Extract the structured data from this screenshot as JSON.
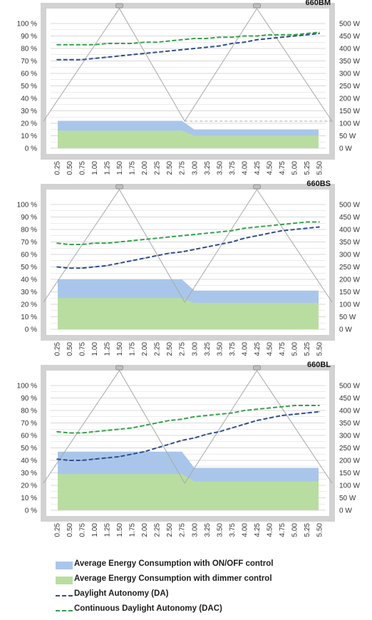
{
  "legend": {
    "onoff": "Average Energy Consumption with ON/OFF control",
    "dimmer": "Average Energy Consumption with dimmer control",
    "da": "Daylight Autonomy (DA)",
    "dac": "Continuous Daylight Autonomy (DAC)"
  },
  "colors": {
    "onoff": "#a9c6ea",
    "dimmer": "#b9dda0",
    "da": "#2f4d8e",
    "dac": "#35a24a",
    "frame": "#d2d2d2",
    "grid": "#d9d9d9",
    "triangle": "#a8a8a8"
  },
  "chart_data": [
    {
      "type": "area",
      "title": "660BM",
      "categories": [
        "0.25",
        "0.50",
        "0.75",
        "1.00",
        "1.25",
        "1.50",
        "1.75",
        "2.00",
        "2.25",
        "2.50",
        "2.75",
        "3.00",
        "3.25",
        "3.50",
        "3.75",
        "4.00",
        "4.25",
        "4.50",
        "4.75",
        "5.00",
        "5.25",
        "5.50"
      ],
      "y_left_ticks": [
        "0 %",
        "10 %",
        "20 %",
        "30 %",
        "40 %",
        "50 %",
        "60 %",
        "70 %",
        "80 %",
        "90 %",
        "100 %"
      ],
      "y_right_ticks": [
        "0 W",
        "50 W",
        "100 W",
        "150 W",
        "200 W",
        "250 W",
        "300 W",
        "350 W",
        "400 W",
        "450 W",
        "500 W"
      ],
      "ylim_left": [
        0,
        100
      ],
      "ylim_right": [
        0,
        500
      ],
      "grid": true,
      "series": [
        {
          "name": "Average Energy Consumption with ON/OFF control",
          "kind": "area",
          "axis": "right",
          "values": [
            110,
            110,
            110,
            110,
            110,
            110,
            110,
            110,
            110,
            110,
            110,
            75,
            75,
            75,
            75,
            75,
            75,
            75,
            75,
            75,
            75,
            75
          ]
        },
        {
          "name": "Average Energy Consumption with dimmer control",
          "kind": "area",
          "axis": "right",
          "values": [
            70,
            70,
            70,
            70,
            70,
            70,
            70,
            70,
            70,
            70,
            70,
            50,
            50,
            50,
            50,
            50,
            50,
            50,
            50,
            50,
            50,
            50
          ]
        },
        {
          "name": "Daylight Autonomy (DA)",
          "kind": "line",
          "axis": "left",
          "values": [
            71,
            71,
            71,
            72,
            73,
            74,
            75,
            76,
            77,
            78,
            79,
            80,
            81,
            82,
            84,
            85,
            87,
            88,
            89,
            90,
            91,
            92
          ]
        },
        {
          "name": "Continuous Daylight Autonomy (DAC)",
          "kind": "line",
          "axis": "left",
          "values": [
            83,
            83,
            83,
            83,
            84,
            84,
            84,
            85,
            85,
            86,
            87,
            88,
            88,
            89,
            89,
            90,
            90,
            91,
            91,
            91,
            92,
            93
          ]
        }
      ]
    },
    {
      "type": "area",
      "title": "660BS",
      "categories": [
        "0.25",
        "0.50",
        "0.75",
        "1.00",
        "1.25",
        "1.50",
        "1.75",
        "2.00",
        "2.25",
        "2.50",
        "2.75",
        "3.00",
        "3.25",
        "3.50",
        "3.75",
        "4.00",
        "4.25",
        "4.50",
        "4.75",
        "5.00",
        "5.25",
        "5.50"
      ],
      "y_left_ticks": [
        "0 %",
        "10 %",
        "20 %",
        "30 %",
        "40 %",
        "50 %",
        "60 %",
        "70 %",
        "80 %",
        "90 %",
        "100 %"
      ],
      "y_right_ticks": [
        "0 W",
        "50 W",
        "100 W",
        "150 W",
        "200 W",
        "250 W",
        "300 W",
        "350 W",
        "400 W",
        "450 W",
        "500 W"
      ],
      "ylim_left": [
        0,
        100
      ],
      "ylim_right": [
        0,
        500
      ],
      "grid": true,
      "series": [
        {
          "name": "Average Energy Consumption with ON/OFF control",
          "kind": "area",
          "axis": "right",
          "values": [
            200,
            200,
            200,
            200,
            200,
            200,
            200,
            200,
            200,
            200,
            200,
            155,
            155,
            155,
            155,
            155,
            155,
            155,
            155,
            155,
            155,
            155
          ]
        },
        {
          "name": "Average Energy Consumption with dimmer control",
          "kind": "area",
          "axis": "right",
          "values": [
            125,
            125,
            125,
            125,
            125,
            125,
            125,
            125,
            125,
            125,
            125,
            105,
            105,
            105,
            105,
            105,
            105,
            105,
            105,
            105,
            105,
            105
          ]
        },
        {
          "name": "Daylight Autonomy (DA)",
          "kind": "line",
          "axis": "left",
          "values": [
            50,
            49,
            49,
            50,
            51,
            53,
            55,
            57,
            59,
            61,
            62,
            64,
            66,
            68,
            70,
            73,
            75,
            77,
            79,
            80,
            81,
            82
          ]
        },
        {
          "name": "Continuous Daylight Autonomy (DAC)",
          "kind": "line",
          "axis": "left",
          "values": [
            69,
            68,
            68,
            69,
            69,
            70,
            71,
            72,
            73,
            74,
            75,
            76,
            77,
            78,
            79,
            81,
            82,
            83,
            84,
            85,
            86,
            86
          ]
        }
      ]
    },
    {
      "type": "area",
      "title": "660BL",
      "categories": [
        "0.25",
        "0.50",
        "0.75",
        "1.00",
        "1.25",
        "1.50",
        "1.75",
        "2.00",
        "2.25",
        "2.50",
        "2.75",
        "3.00",
        "3.25",
        "3.50",
        "3.75",
        "4.00",
        "4.25",
        "4.50",
        "4.75",
        "5.00",
        "5.25",
        "5.50"
      ],
      "y_left_ticks": [
        "0 %",
        "10 %",
        "20 %",
        "30 %",
        "40 %",
        "50 %",
        "60 %",
        "70 %",
        "80 %",
        "90 %",
        "100 %"
      ],
      "y_right_ticks": [
        "0 W",
        "50 W",
        "100 W",
        "150 W",
        "200 W",
        "250 W",
        "300 W",
        "350 W",
        "400 W",
        "450 W",
        "500 W"
      ],
      "ylim_left": [
        0,
        100
      ],
      "ylim_right": [
        0,
        500
      ],
      "grid": true,
      "series": [
        {
          "name": "Average Energy Consumption with ON/OFF control",
          "kind": "area",
          "axis": "right",
          "values": [
            235,
            235,
            235,
            235,
            235,
            235,
            235,
            235,
            235,
            235,
            235,
            170,
            170,
            170,
            170,
            170,
            170,
            170,
            170,
            170,
            170,
            170
          ]
        },
        {
          "name": "Average Energy Consumption with dimmer control",
          "kind": "area",
          "axis": "right",
          "values": [
            145,
            145,
            145,
            145,
            145,
            145,
            145,
            145,
            145,
            145,
            145,
            115,
            115,
            115,
            115,
            115,
            115,
            115,
            115,
            115,
            115,
            115
          ]
        },
        {
          "name": "Daylight Autonomy (DA)",
          "kind": "line",
          "axis": "left",
          "values": [
            41,
            40,
            40,
            41,
            42,
            43,
            45,
            47,
            50,
            53,
            56,
            58,
            61,
            63,
            66,
            69,
            72,
            74,
            76,
            77,
            78,
            79
          ]
        },
        {
          "name": "Continuous Daylight Autonomy (DAC)",
          "kind": "line",
          "axis": "left",
          "values": [
            63,
            62,
            62,
            63,
            64,
            65,
            66,
            68,
            70,
            72,
            73,
            75,
            76,
            77,
            78,
            80,
            81,
            82,
            83,
            84,
            84,
            84
          ]
        }
      ]
    }
  ]
}
